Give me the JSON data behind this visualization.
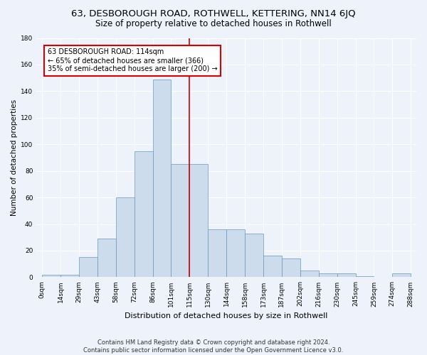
{
  "title": "63, DESBOROUGH ROAD, ROTHWELL, KETTERING, NN14 6JQ",
  "subtitle": "Size of property relative to detached houses in Rothwell",
  "xlabel": "Distribution of detached houses by size in Rothwell",
  "ylabel": "Number of detached properties",
  "footnote1": "Contains HM Land Registry data © Crown copyright and database right 2024.",
  "footnote2": "Contains public sector information licensed under the Open Government Licence v3.0.",
  "bin_labels": [
    "0sqm",
    "14sqm",
    "29sqm",
    "43sqm",
    "58sqm",
    "72sqm",
    "86sqm",
    "101sqm",
    "115sqm",
    "130sqm",
    "144sqm",
    "158sqm",
    "173sqm",
    "187sqm",
    "202sqm",
    "216sqm",
    "230sqm",
    "245sqm",
    "259sqm",
    "274sqm",
    "288sqm"
  ],
  "bar_values": [
    2,
    2,
    15,
    29,
    60,
    95,
    149,
    85,
    85,
    36,
    36,
    33,
    16,
    14,
    5,
    3,
    3,
    1,
    0,
    3,
    0
  ],
  "bar_color": "#ccdcec",
  "bar_edge_color": "#6699bb",
  "vline_x": 8.0,
  "annotation_title": "63 DESBOROUGH ROAD: 114sqm",
  "annotation_line1": "← 65% of detached houses are smaller (366)",
  "annotation_line2": "35% of semi-detached houses are larger (200) →",
  "annotation_box_color": "#dd0000",
  "vline_color": "#cc0000",
  "ylim": [
    0,
    180
  ],
  "background_color": "#eef2fb",
  "grid_color": "#ffffff",
  "title_fontsize": 9.5,
  "subtitle_fontsize": 8.5,
  "ylabel_fontsize": 7.5,
  "xlabel_fontsize": 8,
  "tick_fontsize": 6.5,
  "annot_fontsize": 7,
  "footnote_fontsize": 6
}
